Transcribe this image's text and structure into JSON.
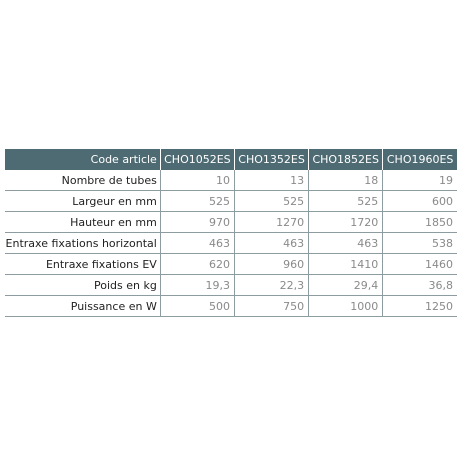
{
  "table": {
    "header_label": "Code article",
    "columns": [
      "CHO1052ES",
      "CHO1352ES",
      "CHO1852ES",
      "CHO1960ES"
    ],
    "rows": [
      {
        "label": "Nombre de tubes",
        "values": [
          "10",
          "13",
          "18",
          "19"
        ]
      },
      {
        "label": "Largeur en mm",
        "values": [
          "525",
          "525",
          "525",
          "600"
        ]
      },
      {
        "label": "Hauteur en mm",
        "values": [
          "970",
          "1270",
          "1720",
          "1850"
        ]
      },
      {
        "label": "Entraxe fixations horizontal",
        "values": [
          "463",
          "463",
          "463",
          "538"
        ]
      },
      {
        "label": "Entraxe fixations EV",
        "values": [
          "620",
          "960",
          "1410",
          "1460"
        ]
      },
      {
        "label": "Poids en kg",
        "values": [
          "19,3",
          "22,3",
          "29,4",
          "36,8"
        ]
      },
      {
        "label": "Puissance en W",
        "values": [
          "500",
          "750",
          "1000",
          "1250"
        ]
      }
    ]
  },
  "colors": {
    "header_bg": "#4e6a72",
    "header_text": "#ffffff",
    "value_text": "#8a8a8a",
    "grid_line": "#8c9ca0"
  }
}
